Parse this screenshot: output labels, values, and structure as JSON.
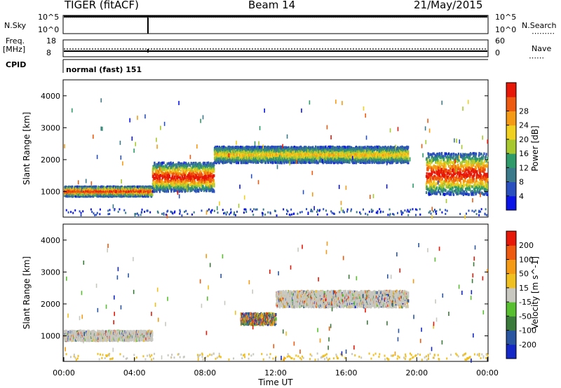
{
  "header": {
    "title": "TIGER (fitACF)",
    "beam": "Beam 14",
    "date": "21/May/2015"
  },
  "panels": {
    "nsky_label": "N.Sky",
    "nsky_top": "10^5",
    "nsky_bottom": "10^0",
    "nsearch_label": "N.Search",
    "nsearch_top": "10^5",
    "nsearch_bottom": "10^0",
    "freq_label": "Freq.",
    "freq_unit": "[MHz]",
    "freq_top": "18",
    "freq_bottom": "8",
    "nave_label": "Nave",
    "nave_top": "60",
    "nave_bottom": "0",
    "cpid_label": "CPID",
    "cpid_value": "normal (fast) 151"
  },
  "chart_data": [
    {
      "type": "heatmap",
      "name": "power",
      "xlabel": "",
      "ylabel": "Slant Range [km]",
      "xlim": [
        0,
        24
      ],
      "ylim": [
        200,
        4500
      ],
      "yticks": [
        1000,
        2000,
        3000,
        4000
      ],
      "colorbar": {
        "label": "Power [dB]",
        "ticks": [
          4,
          8,
          12,
          16,
          20,
          24,
          28
        ],
        "colors": [
          "#0a14e6",
          "#2a4fbf",
          "#3a7a8a",
          "#2f9a6a",
          "#a8c830",
          "#f0d020",
          "#f59a14",
          "#ee5a10",
          "#e81808"
        ]
      },
      "echo_bands": [
        {
          "t": [
            0.0,
            5.0
          ],
          "range": [
            850,
            1150
          ],
          "level": "high"
        },
        {
          "t": [
            5.0,
            8.5
          ],
          "range": [
            1000,
            1900
          ],
          "level": "high"
        },
        {
          "t": [
            8.5,
            12.0
          ],
          "range": [
            1900,
            2400
          ],
          "level": "medium"
        },
        {
          "t": [
            12.0,
            19.5
          ],
          "range": [
            1900,
            2400
          ],
          "level": "medium"
        },
        {
          "t": [
            20.5,
            24.0
          ],
          "range": [
            900,
            2200
          ],
          "level": "high"
        }
      ]
    },
    {
      "type": "heatmap",
      "name": "velocity",
      "xlabel": "Time UT",
      "ylabel": "Slant Range [km]",
      "xlim": [
        0,
        24
      ],
      "ylim": [
        200,
        4500
      ],
      "xticks": [
        "00:00",
        "04:00",
        "08:00",
        "12:00",
        "16:00",
        "20:00",
        "00:00"
      ],
      "yticks": [
        1000,
        2000,
        3000,
        4000
      ],
      "colorbar": {
        "label": "Velocity [m s^-1]",
        "ticks": [
          200,
          100,
          50,
          15,
          -15,
          -50,
          -100,
          -200
        ],
        "colors": [
          "#1428c8",
          "#2a55a0",
          "#3a7a3a",
          "#58c030",
          "#c8c8c0",
          "#f0c020",
          "#f59a14",
          "#ee5a10",
          "#e81808"
        ]
      },
      "echo_bands": [
        {
          "t": [
            0.0,
            5.0
          ],
          "range": [
            850,
            1150
          ],
          "velocity": "ground scatter"
        },
        {
          "t": [
            10.0,
            12.0
          ],
          "range": [
            1350,
            1700
          ],
          "velocity": "positive/negative"
        },
        {
          "t": [
            12.0,
            19.5
          ],
          "range": [
            1900,
            2400
          ],
          "velocity": "low"
        }
      ]
    }
  ]
}
